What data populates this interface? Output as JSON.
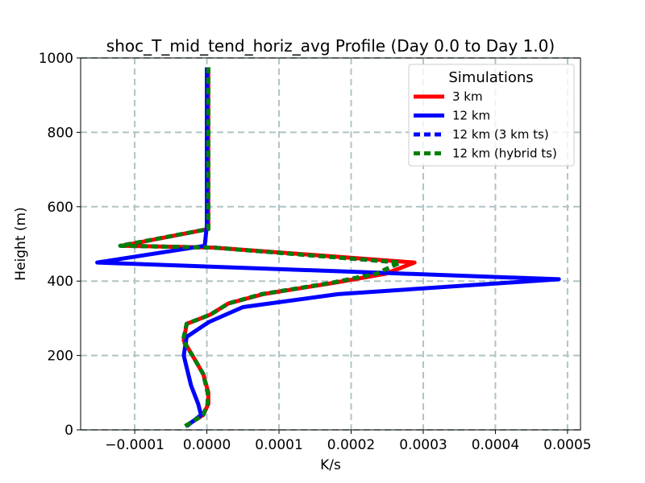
{
  "chart_data": {
    "type": "line",
    "title": "shoc_T_mid_tend_horiz_avg Profile (Day 0.0 to Day 1.0)",
    "xlabel": "K/s",
    "ylabel": "Height (m)",
    "xlim": [
      -0.000175,
      0.000518
    ],
    "ylim": [
      0,
      1000
    ],
    "x_ticks": [
      -0.0001,
      0.0,
      0.0001,
      0.0002,
      0.0003,
      0.0004,
      0.0005
    ],
    "x_tick_labels": [
      "−0.0001",
      "0.0000",
      "0.0001",
      "0.0002",
      "0.0003",
      "0.0004",
      "0.0005"
    ],
    "y_ticks": [
      0,
      200,
      400,
      600,
      800,
      1000
    ],
    "y_tick_labels": [
      "0",
      "200",
      "400",
      "600",
      "800",
      "1000"
    ],
    "grid": true,
    "legend": {
      "title": "Simulations",
      "placement": "top-right"
    },
    "series": [
      {
        "name": "3 km",
        "color": "#ff0000",
        "dash": "solid",
        "x": [
          -3e-05,
          -5e-06,
          2e-06,
          2e-06,
          -5e-06,
          -2e-05,
          -3.2e-05,
          -2.8e-05,
          5e-06,
          3e-05,
          7.8e-05,
          0.000175,
          0.000248,
          0.000288,
          1e-05,
          -0.000118,
          2e-06,
          2e-06,
          2e-06,
          2e-06,
          2e-06
        ],
        "y": [
          10,
          40,
          70,
          100,
          150,
          200,
          240,
          285,
          310,
          340,
          365,
          395,
          420,
          450,
          490,
          495,
          540,
          600,
          700,
          800,
          975
        ]
      },
      {
        "name": "12 km",
        "color": "#0000ff",
        "dash": "solid",
        "x": [
          -2.8e-05,
          -8e-06,
          -1.2e-05,
          -2.2e-05,
          -3.2e-05,
          -2.8e-05,
          3e-06,
          5e-05,
          0.000182,
          0.000488,
          -0.000152,
          -3e-06,
          0.0,
          0.0,
          0.0,
          0.0
        ],
        "y": [
          10,
          40,
          70,
          120,
          200,
          250,
          290,
          330,
          365,
          405,
          450,
          495,
          550,
          700,
          850,
          975
        ]
      },
      {
        "name": "12 km (3 km ts)",
        "color": "#0000ff",
        "dash": "dashed",
        "x": [
          -3e-05,
          -5e-06,
          1e-06,
          1e-06,
          -5e-06,
          -2e-05,
          -3.3e-05,
          -2.8e-05,
          5e-06,
          3e-05,
          7.6e-05,
          0.000172,
          0.000235,
          0.000268,
          1e-05,
          -0.00012,
          2e-06,
          2e-06,
          2e-06,
          2e-06,
          2e-06
        ],
        "y": [
          10,
          40,
          70,
          100,
          150,
          200,
          240,
          285,
          310,
          340,
          365,
          395,
          420,
          450,
          490,
          495,
          540,
          600,
          700,
          800,
          975
        ]
      },
      {
        "name": "12 km (hybrid ts)",
        "color": "#008000",
        "dash": "dashed",
        "x": [
          -3e-05,
          -5e-06,
          1e-06,
          1e-06,
          -5e-06,
          -2e-05,
          -3.3e-05,
          -2.8e-05,
          5e-06,
          3e-05,
          7.6e-05,
          0.000172,
          0.000235,
          0.000268,
          1e-05,
          -0.00012,
          2e-06,
          2e-06,
          2e-06,
          2e-06,
          2e-06
        ],
        "y": [
          10,
          40,
          70,
          100,
          150,
          200,
          240,
          285,
          310,
          340,
          365,
          395,
          420,
          450,
          490,
          495,
          540,
          600,
          700,
          800,
          975
        ]
      }
    ]
  }
}
